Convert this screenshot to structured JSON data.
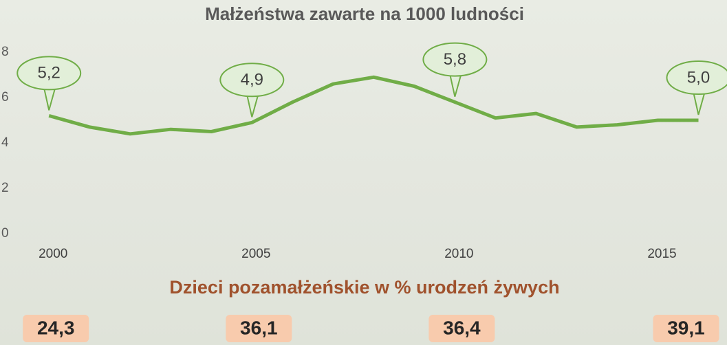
{
  "chart_data": [
    {
      "type": "line",
      "title": "Małżeństwa zawarte na 1000 ludności",
      "x": [
        2000,
        2001,
        2002,
        2003,
        2004,
        2005,
        2006,
        2007,
        2008,
        2009,
        2010,
        2011,
        2012,
        2013,
        2014,
        2015,
        2016
      ],
      "series": [
        {
          "color": "#70ad47",
          "values": [
            5.2,
            4.7,
            4.4,
            4.6,
            4.5,
            4.9,
            5.8,
            6.6,
            6.9,
            6.5,
            5.8,
            5.1,
            5.3,
            4.7,
            4.8,
            5.0,
            5.0
          ],
          "value_labels": [
            "5,2",
            null,
            null,
            null,
            null,
            "4,9",
            null,
            null,
            null,
            null,
            "5,8",
            null,
            null,
            null,
            null,
            null,
            "5,0"
          ]
        }
      ],
      "xlim": [
        1999.2,
        2016.5
      ],
      "xticks": [
        2000,
        2005,
        2010,
        2015
      ],
      "ylim": [
        0,
        8
      ],
      "yticks": [
        0,
        2,
        4,
        6,
        8
      ]
    },
    {
      "type": "boxes",
      "title": "Dzieci pozamałżeńskie w % urodzeń żywych",
      "x": [
        2000,
        2005,
        2010,
        2016
      ],
      "values": [
        24.3,
        36.1,
        36.4,
        39.1
      ],
      "value_labels": [
        "24,3",
        "36,1",
        "36,4",
        "39,1"
      ],
      "color": "#f8cbad"
    }
  ]
}
